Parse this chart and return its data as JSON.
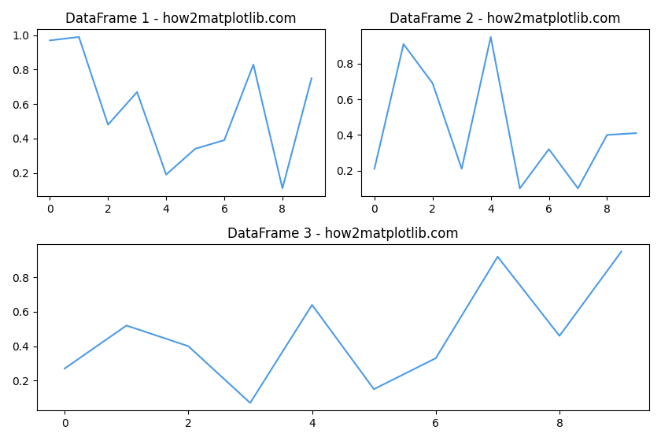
{
  "df1": {
    "title": "DataFrame 1 - how2matplotlib.com",
    "x": [
      0,
      1,
      2,
      3,
      4,
      5,
      6,
      7,
      8,
      9
    ],
    "y": [
      0.97,
      0.99,
      0.48,
      0.67,
      0.19,
      0.34,
      0.39,
      0.83,
      0.11,
      0.75
    ]
  },
  "df2": {
    "title": "DataFrame 2 - how2matplotlib.com",
    "x": [
      0,
      1,
      2,
      3,
      4,
      5,
      6,
      7,
      8,
      9
    ],
    "y": [
      0.21,
      0.91,
      0.69,
      0.21,
      0.95,
      0.1,
      0.32,
      0.1,
      0.4,
      0.41
    ]
  },
  "df3": {
    "title": "DataFrame 3 - how2matplotlib.com",
    "x": [
      0,
      1,
      2,
      3,
      4,
      5,
      6,
      7,
      8,
      9
    ],
    "y": [
      0.27,
      0.52,
      0.4,
      0.07,
      0.64,
      0.15,
      0.33,
      0.92,
      0.46,
      0.95
    ]
  },
  "line_color": "#4C9BE8",
  "bg_color": "#ffffff",
  "figsize": [
    8.4,
    5.6
  ],
  "dpi": 100
}
